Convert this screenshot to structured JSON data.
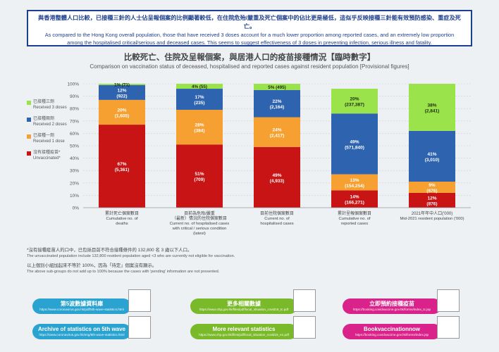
{
  "banner": {
    "zh": "與香港整體人口比較，已接種三針的人士佔呈報個案的比例顯著較低，在住院危殆/嚴重及死亡個案中的佔比更是極低，這似乎反映接種三針能有效預防感染、重症及死亡。",
    "en_line1": "As compared to the Hong Kong overall population, those that have received 3 doses account for a much lower proportion among reported cases, and an extremely low proportion",
    "en_line2": "among the hospitalised critical/serious and deceased cases. This seems to suggest effectiveness of 3 doses in preventing infection, serious illness and fatality."
  },
  "legend": [
    {
      "zh": "已接種三劑",
      "en": "Received 3 doses",
      "color": "#9be34a"
    },
    {
      "zh": "已接種兩劑",
      "en": "Received 2 doses",
      "color": "#2e63b0"
    },
    {
      "zh": "已接種一劑",
      "en": "Received 1 dose",
      "color": "#f5a030"
    },
    {
      "zh": "沒有接種疫苗*",
      "en": "Unvaccinated*",
      "color": "#c81414"
    }
  ],
  "chart_data": {
    "type": "bar",
    "stacked": true,
    "title_zh": "比較死亡、住院及呈報個案，與居港人口的疫苗接種情況【臨時數字】",
    "title": "Comparison on vaccination status of deceased, hospitalised and reported cases against resident population [Provisional figures]",
    "ylim": [
      0,
      100
    ],
    "yticks": [
      "0%",
      "10%",
      "20%",
      "30%",
      "40%",
      "50%",
      "60%",
      "70%",
      "80%",
      "90%",
      "100%"
    ],
    "categories": [
      {
        "zh": "累計死亡個案數目",
        "en": [
          "Cumulative no. of",
          "deaths"
        ]
      },
      {
        "zh": "目前為危殆/嚴重",
        "zh2": "（最新）情況的住院個案數目",
        "en": [
          "Current no. of hospitalised cases",
          "with critical / serious condition",
          "(latest)"
        ]
      },
      {
        "zh": "目前住院個案數目",
        "en": [
          "Current no. of",
          "hospitalised cases"
        ]
      },
      {
        "zh": "累計呈報個案數目",
        "en": [
          "Cumulative no. of",
          "reported cases"
        ]
      },
      {
        "zh": "2021年年中人口('000)",
        "en": [
          "Mid-2021 resident population ('000)"
        ]
      }
    ],
    "series": [
      {
        "name": "Unvaccinated*",
        "color": "#c81414",
        "values": [
          67,
          51,
          49,
          14,
          12
        ],
        "labels": [
          "67%",
          "51%",
          "49%",
          "14%",
          "12%"
        ],
        "counts": [
          "(5,361)",
          "(709)",
          "(4,933)",
          "(166,271)",
          "(876)"
        ]
      },
      {
        "name": "Received 1 dose",
        "color": "#f5a030",
        "values": [
          20,
          28,
          24,
          13,
          9
        ],
        "labels": [
          "20%",
          "28%",
          "24%",
          "13%",
          "9%"
        ],
        "counts": [
          "(1,605)",
          "(384)",
          "(2,417)",
          "(154,254)",
          "(676)"
        ]
      },
      {
        "name": "Received 2 doses",
        "color": "#2e63b0",
        "values": [
          12,
          17,
          22,
          49,
          41
        ],
        "labels": [
          "12%",
          "17%",
          "22%",
          "49%",
          "41%"
        ],
        "counts": [
          "(922)",
          "(235)",
          "(2,164)",
          "(571,840)",
          "(3,010)"
        ]
      },
      {
        "name": "Received 3 doses",
        "color": "#9be34a",
        "values": [
          1,
          4,
          5,
          20,
          38
        ],
        "labels": [
          "1%",
          "4%",
          "5%",
          "20%",
          "38%"
        ],
        "counts": [
          "(71)",
          "(55)",
          "(495)",
          "(237,387)",
          "(2,841)"
        ]
      }
    ]
  },
  "notes": {
    "n1_zh": "*沒有接種疫苗人的口中，已包括目前不符合接種條件的 132,800 名 3 歲以下人口。",
    "n1_en": "The unvaccinated population include 132,800 resident population aged <3 who are currently not eligible for vaccination.",
    "n2_zh": "以上個別小組加起來不等於 100%，因為「待定」個案沒有顯示。",
    "n2_en": "The above sub-groups do not add up to 100% because the cases with 'pending' information are not presented."
  },
  "links": [
    {
      "label": "第5波數據資料庫",
      "url": "https://www.coronavirus.gov.hk/pdf/5th-wave-statistics.html",
      "color": "#2aa3d0"
    },
    {
      "label": "更多相關數據",
      "url": "https://www.chp.gov.hk/files/pdf/local_situation_covid19_tc.pdf",
      "color": "#7ab92a"
    },
    {
      "label": "立即預約接種疫苗",
      "url": "https://booking.covidvaccine.gov.hk/forms/index_tc.jsp",
      "color": "#d9238a"
    },
    {
      "label": "Archive of statistics on 5th wave",
      "url": "https://www.coronavirus.gov.hk/eng/5th-wave-statistics.html",
      "color": "#2aa3d0"
    },
    {
      "label": "More relevant statistics",
      "url": "https://www.chp.gov.hk/files/pdf/local_situation_covid19_en.pdf",
      "color": "#7ab92a"
    },
    {
      "label": "Bookvaccinationnow",
      "url": "https://booking.covidvaccine.gov.hk/forms/index.jsp",
      "color": "#d9238a"
    }
  ]
}
